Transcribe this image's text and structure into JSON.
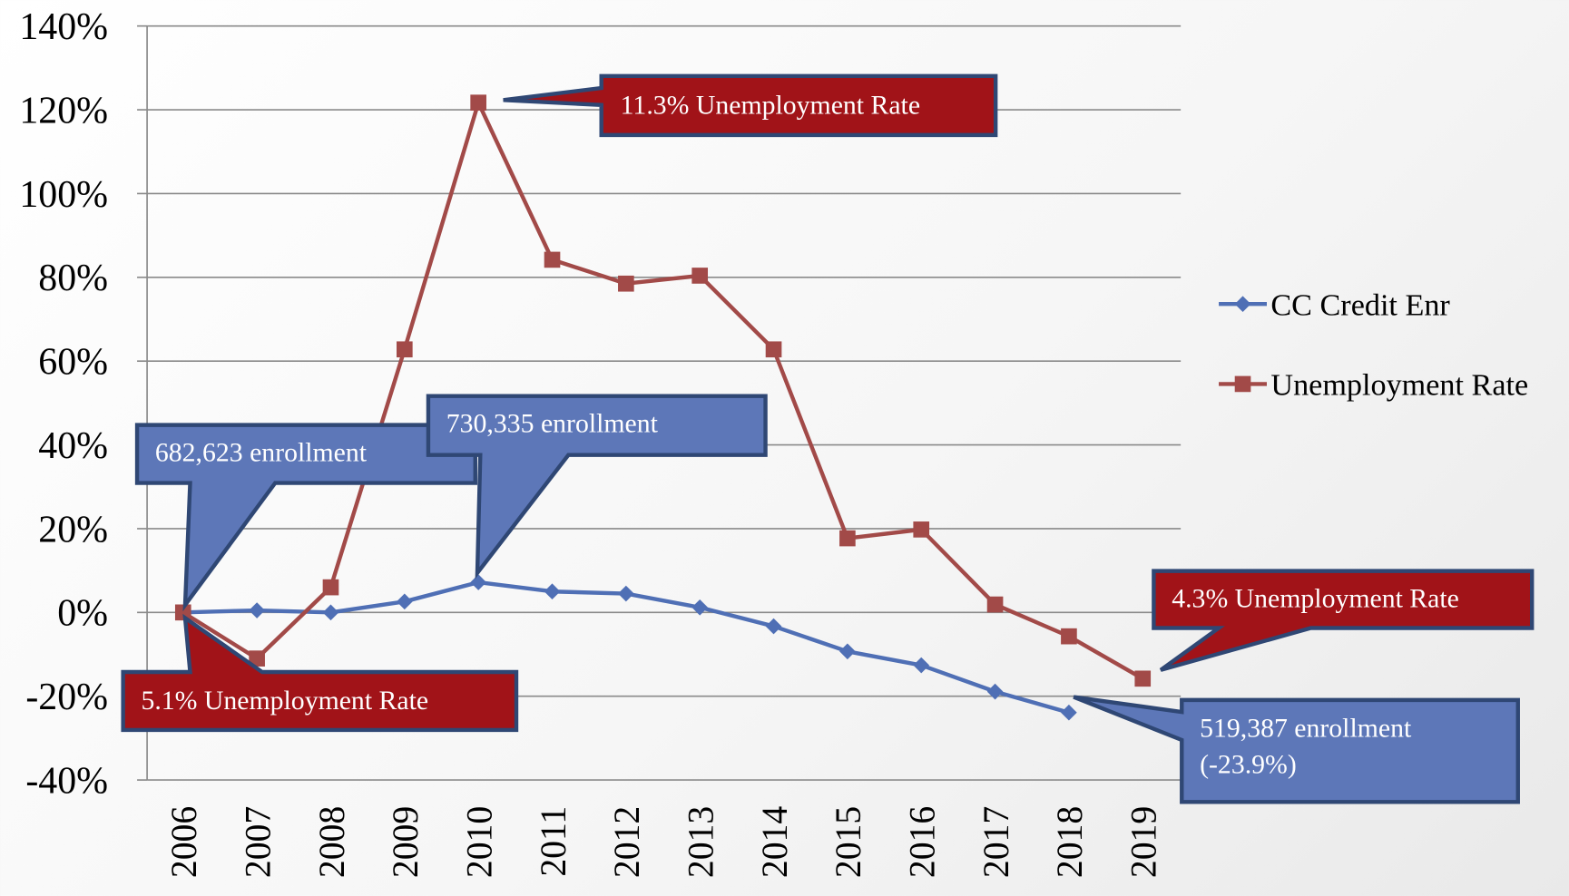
{
  "chart_data": {
    "type": "line",
    "categories": [
      "2006",
      "2007",
      "2008",
      "2009",
      "2010",
      "2011",
      "2012",
      "2013",
      "2014",
      "2015",
      "2016",
      "2017",
      "2018",
      "2019"
    ],
    "series": [
      {
        "name": "CC Credit Enr",
        "color": "#4f6fb5",
        "marker": "diamond",
        "values": [
          0,
          0.5,
          0,
          2.6,
          7.2,
          5.0,
          4.5,
          1.2,
          -3.3,
          -9.3,
          -12.6,
          -18.9,
          -23.9,
          null
        ]
      },
      {
        "name": "Unemployment Rate",
        "color": "#a24a48",
        "marker": "square",
        "values": [
          0,
          -11,
          6.0,
          62.8,
          121.7,
          84.2,
          78.5,
          80.4,
          62.8,
          17.7,
          19.8,
          1.9,
          -5.7,
          -15.8
        ]
      }
    ],
    "ylim": [
      -40,
      140
    ],
    "yticks": [
      {
        "value": -40,
        "label": "-40%"
      },
      {
        "value": -20,
        "label": "-20%"
      },
      {
        "value": 0,
        "label": "0%"
      },
      {
        "value": 20,
        "label": "20%"
      },
      {
        "value": 40,
        "label": "40%"
      },
      {
        "value": 60,
        "label": "60%"
      },
      {
        "value": 80,
        "label": "80%"
      },
      {
        "value": 100,
        "label": "100%"
      },
      {
        "value": 120,
        "label": "120%"
      },
      {
        "value": 140,
        "label": "140%"
      }
    ],
    "grid": true,
    "legend": "right",
    "annotations": [
      {
        "lines": [
          "682,623 enrollment"
        ],
        "color": "#5d77b8"
      },
      {
        "lines": [
          "730,335 enrollment"
        ],
        "color": "#5d77b8"
      },
      {
        "lines": [
          "11.3% Unemployment Rate"
        ],
        "color": "#a11318"
      },
      {
        "lines": [
          "5.1% Unemployment Rate"
        ],
        "color": "#a11318"
      },
      {
        "lines": [
          "4.3% Unemployment Rate"
        ],
        "color": "#a11318"
      },
      {
        "lines": [
          "519,387 enrollment",
          "(-23.9%)"
        ],
        "color": "#5d77b8"
      }
    ]
  }
}
